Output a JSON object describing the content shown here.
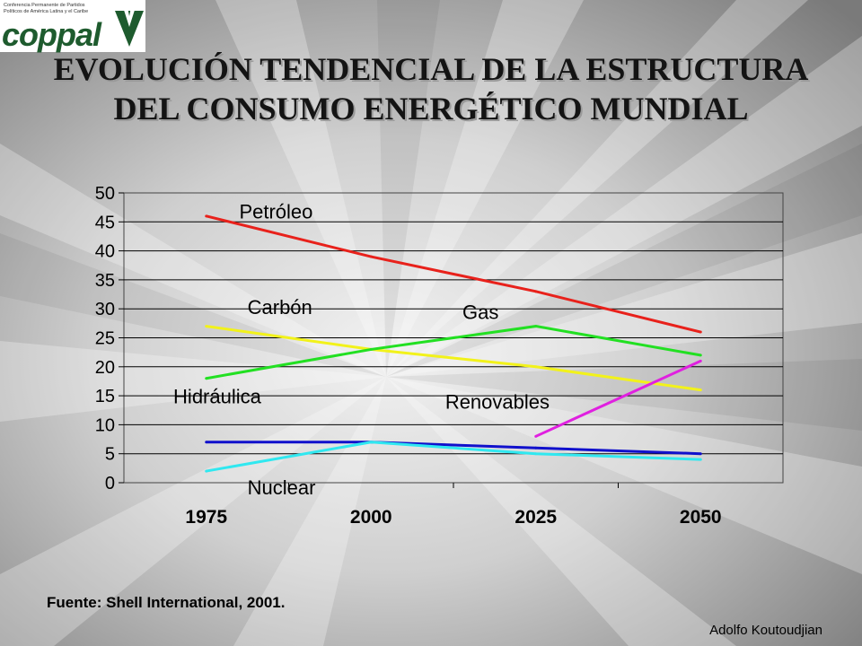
{
  "logo": {
    "subtitle": "Conferencia Permanente de Partidos\nPolíticos de América Latina y el Caribe",
    "wordmark": "coppal",
    "color": "#1e5b2e"
  },
  "title": "EVOLUCIÓN TENDENCIAL DE LA ESTRUCTURA DEL CONSUMO ENERGÉTICO MUNDIAL",
  "source": "Fuente: Shell International, 2001.",
  "author": "Adolfo Koutoudjian",
  "chart_data": {
    "type": "line",
    "categories": [
      "1975",
      "2000",
      "2025",
      "2050"
    ],
    "ylim": [
      0,
      50
    ],
    "yticks": [
      "0",
      "5",
      "10",
      "15",
      "20",
      "25",
      "30",
      "35",
      "40",
      "45",
      "50"
    ],
    "grid": true,
    "legend": "inline labels",
    "series": [
      {
        "name": "Petróleo",
        "color": "#e8211b",
        "values": [
          46,
          39,
          33,
          26
        ]
      },
      {
        "name": "Carbón",
        "color": "#f2f21a",
        "values": [
          27,
          23,
          20,
          16
        ]
      },
      {
        "name": "Gas",
        "color": "#22e022",
        "values": [
          18,
          23,
          27,
          22
        ]
      },
      {
        "name": "Renovables",
        "color": "#e020e0",
        "values": [
          null,
          null,
          8,
          21
        ]
      },
      {
        "name": "Hidráulica",
        "color": "#1010cc",
        "values": [
          7,
          7,
          6,
          5
        ]
      },
      {
        "name": "Nuclear",
        "color": "#30e8f0",
        "values": [
          2,
          7,
          5,
          4
        ]
      }
    ]
  }
}
